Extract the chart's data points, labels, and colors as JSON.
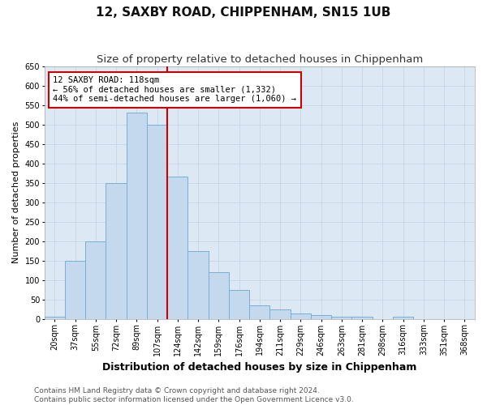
{
  "title": "12, SAXBY ROAD, CHIPPENHAM, SN15 1UB",
  "subtitle": "Size of property relative to detached houses in Chippenham",
  "xlabel": "Distribution of detached houses by size in Chippenham",
  "ylabel": "Number of detached properties",
  "categories": [
    "20sqm",
    "37sqm",
    "55sqm",
    "72sqm",
    "89sqm",
    "107sqm",
    "124sqm",
    "142sqm",
    "159sqm",
    "176sqm",
    "194sqm",
    "211sqm",
    "229sqm",
    "246sqm",
    "263sqm",
    "281sqm",
    "298sqm",
    "316sqm",
    "333sqm",
    "351sqm",
    "368sqm"
  ],
  "values": [
    5,
    150,
    200,
    350,
    530,
    500,
    365,
    175,
    120,
    75,
    35,
    25,
    15,
    10,
    5,
    5,
    0,
    5,
    0,
    0,
    0
  ],
  "bar_color": "#c5d9ee",
  "bar_edge_color": "#7aaed4",
  "vline_color": "#cc0000",
  "annotation_text": "12 SAXBY ROAD: 118sqm\n← 56% of detached houses are smaller (1,332)\n44% of semi-detached houses are larger (1,060) →",
  "annotation_box_color": "#ffffff",
  "annotation_box_edge": "#cc0000",
  "ylim": [
    0,
    650
  ],
  "yticks": [
    0,
    50,
    100,
    150,
    200,
    250,
    300,
    350,
    400,
    450,
    500,
    550,
    600,
    650
  ],
  "grid_color": "#c8d8e8",
  "background_color": "#dce8f4",
  "footer_line1": "Contains HM Land Registry data © Crown copyright and database right 2024.",
  "footer_line2": "Contains public sector information licensed under the Open Government Licence v3.0.",
  "title_fontsize": 11,
  "subtitle_fontsize": 9.5,
  "xlabel_fontsize": 9,
  "ylabel_fontsize": 8,
  "tick_fontsize": 7,
  "annotation_fontsize": 7.5,
  "footer_fontsize": 6.5
}
